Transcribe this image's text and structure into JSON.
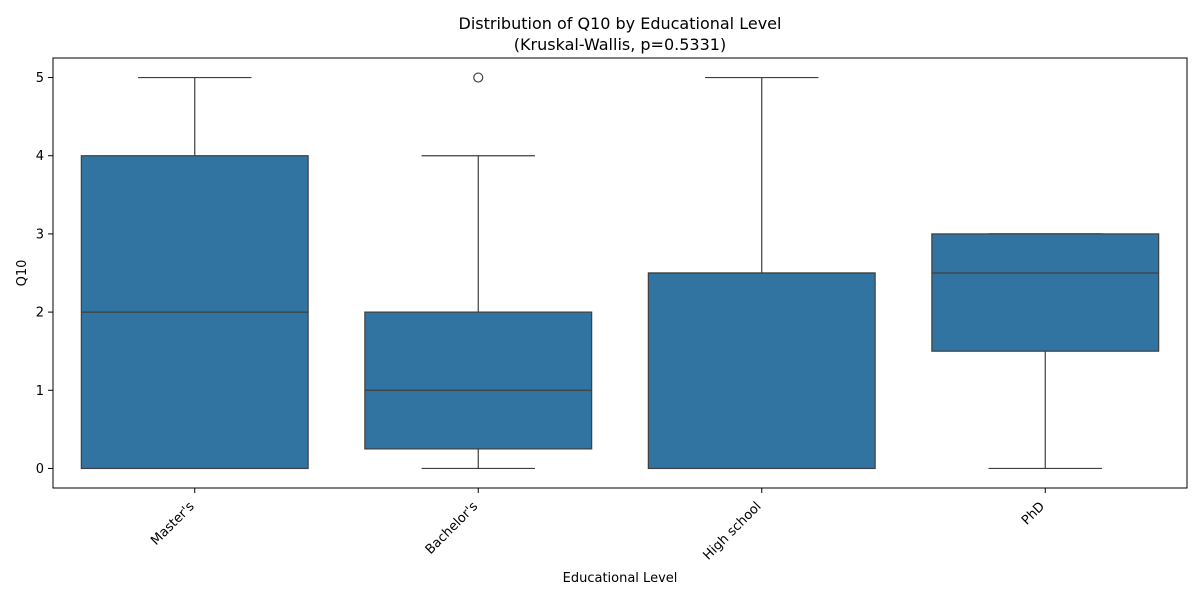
{
  "chart_data": {
    "type": "box",
    "title": "Distribution of Q10 by Educational Level",
    "subtitle": "(Kruskal-Wallis, p=0.5331)",
    "xlabel": "Educational Level",
    "ylabel": "Q10",
    "ylim": [
      -0.25,
      5.25
    ],
    "yticks": [
      0,
      1,
      2,
      3,
      4,
      5
    ],
    "grid": false,
    "legend": "none",
    "box_color": "#3274a1",
    "line_color": "#3f3f3f",
    "categories": [
      "Master's",
      "Bachelor's",
      "High school",
      "PhD"
    ],
    "boxes": [
      {
        "whisker_low": 0,
        "q1": 0,
        "median": 2,
        "q3": 4,
        "whisker_high": 5,
        "outliers": []
      },
      {
        "whisker_low": 0,
        "q1": 0.25,
        "median": 1,
        "q3": 2,
        "whisker_high": 4,
        "outliers": [
          5
        ]
      },
      {
        "whisker_low": 0,
        "q1": 0,
        "median": 2.5,
        "q3": 2.5,
        "whisker_high": 5,
        "outliers": []
      },
      {
        "whisker_low": 0,
        "q1": 1.5,
        "median": 2.5,
        "q3": 3,
        "whisker_high": 3,
        "outliers": []
      }
    ]
  }
}
